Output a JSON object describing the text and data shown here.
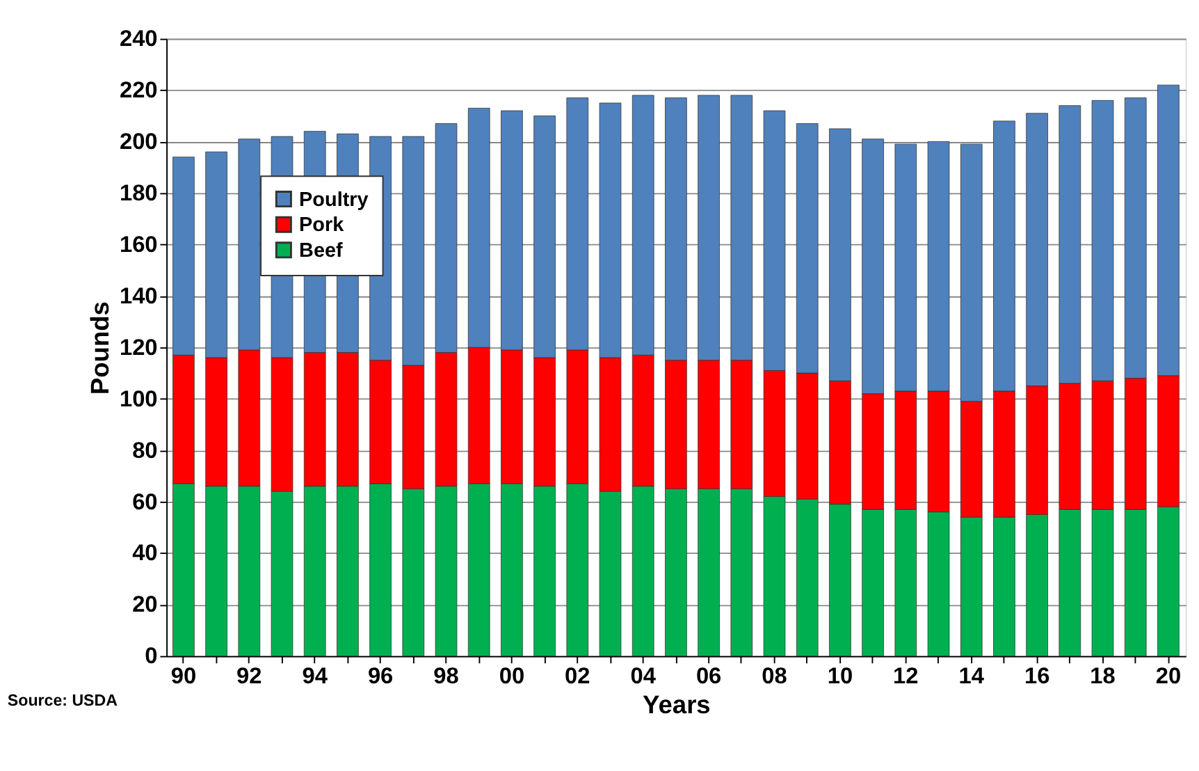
{
  "chart_data": {
    "type": "bar",
    "stacked": true,
    "xlabel": "Years",
    "ylabel": "Pounds",
    "categories": [
      "90",
      null,
      "92",
      null,
      "94",
      null,
      "96",
      null,
      "98",
      null,
      "00",
      null,
      "02",
      null,
      "04",
      null,
      "06",
      null,
      "08",
      null,
      "10",
      null,
      "12",
      null,
      "14",
      null,
      "16",
      null,
      "18",
      null,
      "20"
    ],
    "series": [
      {
        "name": "Beef",
        "color": "#00b050",
        "values": [
          67,
          66,
          66,
          64,
          66,
          66,
          67,
          65,
          66,
          67,
          67,
          66,
          67,
          64,
          66,
          65,
          65,
          65,
          62,
          61,
          59,
          57,
          57,
          56,
          54,
          54,
          55,
          57,
          57,
          57,
          58
        ]
      },
      {
        "name": "Pork",
        "color": "#ff0000",
        "values": [
          50,
          50,
          53,
          52,
          52,
          52,
          48,
          48,
          52,
          53,
          52,
          50,
          52,
          52,
          51,
          50,
          50,
          50,
          49,
          49,
          48,
          45,
          46,
          47,
          45,
          49,
          50,
          49,
          50,
          51,
          51
        ]
      },
      {
        "name": "Poultry",
        "color": "#4f81bd",
        "values": [
          77,
          80,
          82,
          86,
          86,
          85,
          87,
          89,
          89,
          93,
          93,
          94,
          98,
          99,
          101,
          102,
          103,
          103,
          101,
          97,
          98,
          99,
          96,
          97,
          100,
          105,
          106,
          108,
          109,
          109,
          113
        ]
      }
    ],
    "ylim": [
      0,
      240
    ],
    "yticks": [
      0,
      20,
      40,
      60,
      80,
      100,
      120,
      140,
      160,
      180,
      200,
      220,
      240
    ],
    "grid": "y",
    "legend": "top left",
    "annotations": [
      "Source: USDA"
    ]
  }
}
